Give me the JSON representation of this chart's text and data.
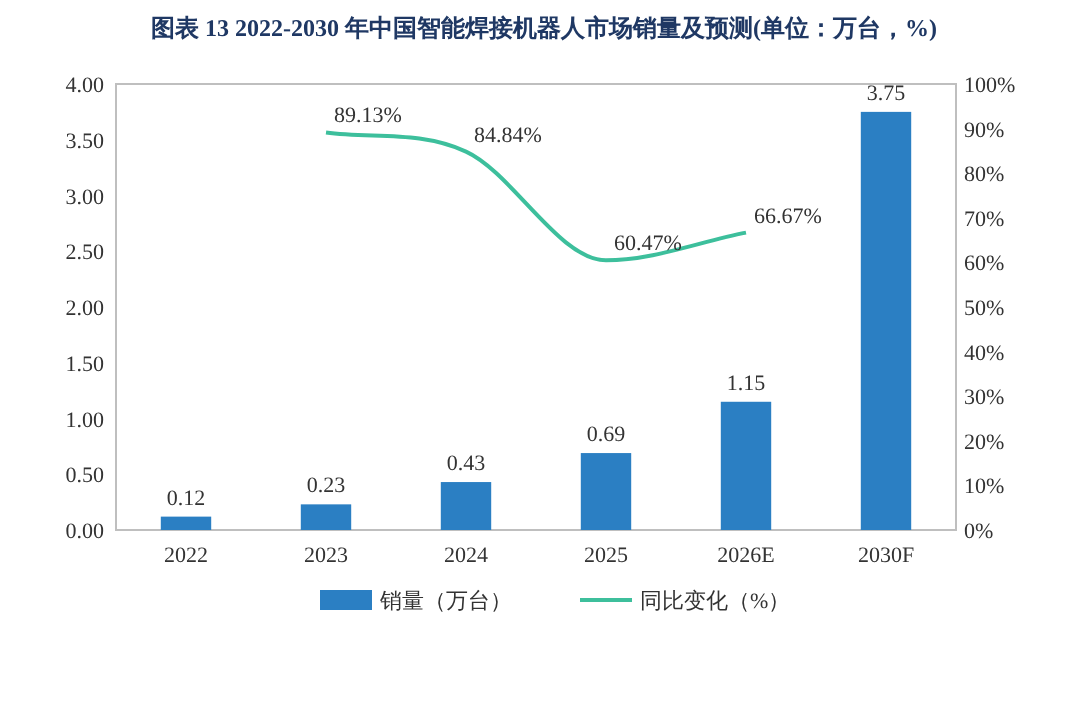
{
  "chart_data": {
    "type": "bar",
    "title": "图表 13  2022-2030 年中国智能焊接机器人市场销量及预测(单位：万台，%)",
    "categories": [
      "2022",
      "2023",
      "2024",
      "2025",
      "2026E",
      "2030F"
    ],
    "series": [
      {
        "name": "销量（万台）",
        "color": "#2b7fc3",
        "values": [
          0.12,
          0.23,
          0.43,
          0.69,
          1.15,
          3.75
        ],
        "value_labels": [
          "0.12",
          "0.23",
          "0.43",
          "0.69",
          "1.15",
          "3.75"
        ]
      },
      {
        "name": "同比变化（%）",
        "type": "line",
        "axis": "y2",
        "color": "#3dbf9c",
        "values": [
          null,
          89.13,
          84.84,
          60.47,
          66.67,
          null
        ],
        "value_labels": [
          null,
          "89.13%",
          "84.84%",
          "60.47%",
          "66.67%",
          null
        ]
      }
    ],
    "ylim": [
      0,
      4
    ],
    "yticks": [
      {
        "value": 0,
        "label": "0.00"
      },
      {
        "value": 0.5,
        "label": "0.50"
      },
      {
        "value": 1,
        "label": "1.00"
      },
      {
        "value": 1.5,
        "label": "1.50"
      },
      {
        "value": 2,
        "label": "2.00"
      },
      {
        "value": 2.5,
        "label": "2.50"
      },
      {
        "value": 3,
        "label": "3.00"
      },
      {
        "value": 3.5,
        "label": "3.50"
      },
      {
        "value": 4,
        "label": "4.00"
      }
    ],
    "y2lim": [
      0,
      100
    ],
    "y2ticks": [
      {
        "value": 0,
        "label": "0%"
      },
      {
        "value": 10,
        "label": "10%"
      },
      {
        "value": 20,
        "label": "20%"
      },
      {
        "value": 30,
        "label": "30%"
      },
      {
        "value": 40,
        "label": "40%"
      },
      {
        "value": 50,
        "label": "50%"
      },
      {
        "value": 60,
        "label": "60%"
      },
      {
        "value": 70,
        "label": "70%"
      },
      {
        "value": 80,
        "label": "80%"
      },
      {
        "value": 90,
        "label": "90%"
      },
      {
        "value": 100,
        "label": "100%"
      }
    ],
    "legend": "bottom",
    "grid": false
  }
}
